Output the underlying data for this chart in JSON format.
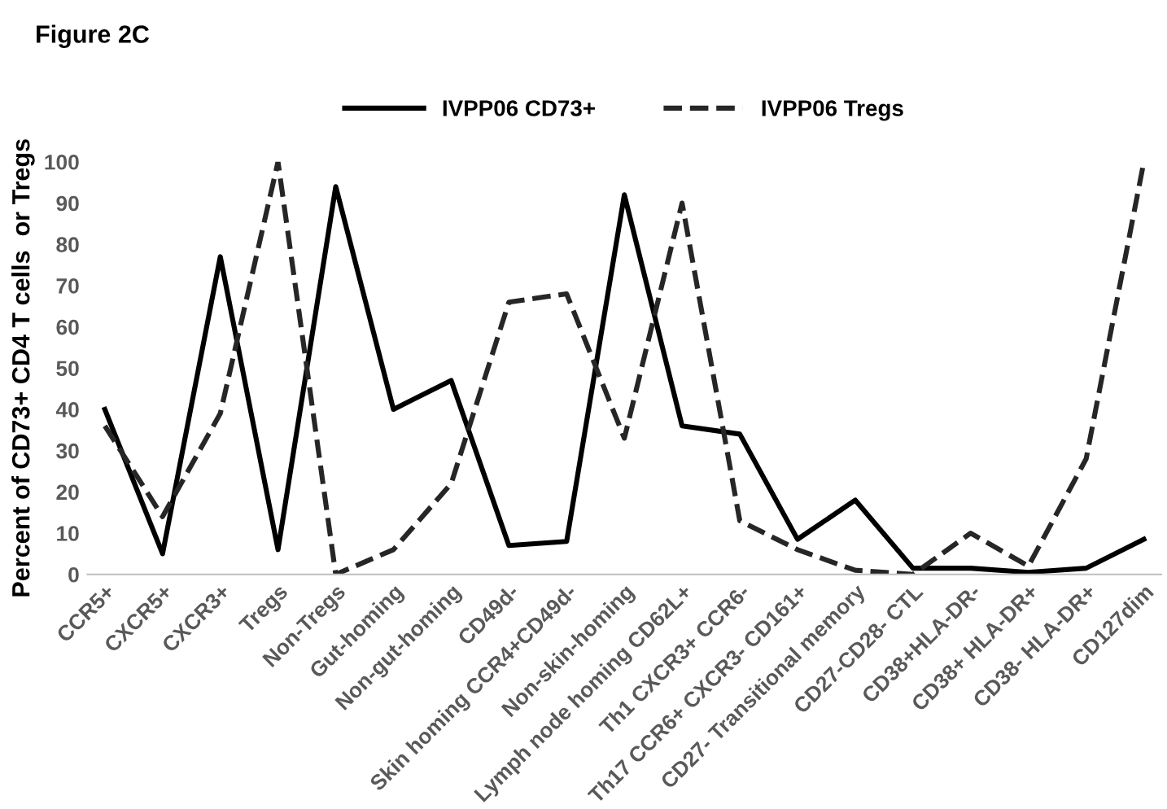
{
  "chart_data": {
    "type": "line",
    "title": "Figure 2C",
    "ylabel": "Percent of CD73+ CD4 T cells  or Tregs",
    "categories": [
      "CCR5+",
      "CXCR5+",
      "CXCR3+",
      "Tregs",
      "Non-Tregs",
      "Gut-homing",
      "Non-gut-homing",
      "CD49d-",
      "Skin homing CCR4+CD49d-",
      "Non-skin-homing",
      "Lymph node homing CD62L+",
      "Th1 CXCR3+ CCR6-",
      "Th17 CCR6+ CXCR3- CD161+",
      "CD27- Transitional memory",
      "CD27-CD28- CTL",
      "CD38+HLA-DR-",
      "CD38+ HLA-DR+",
      "CD38- HLA-DR+",
      "CD127dim"
    ],
    "series": [
      {
        "name": "IVPP06 CD73+",
        "color": "#000000",
        "line_style": "solid",
        "values": [
          40,
          5,
          77,
          6,
          94,
          40,
          47,
          7,
          8,
          92,
          36,
          34,
          8.5,
          18,
          1.5,
          1.5,
          0.5,
          1.5,
          8.5
        ]
      },
      {
        "name": "IVPP06 Tregs",
        "color": "#262626",
        "line_style": "dashed",
        "values": [
          36,
          14,
          39,
          100,
          0,
          6,
          22,
          66,
          68,
          33,
          90,
          13,
          6,
          1,
          0,
          10,
          2,
          28,
          100
        ]
      }
    ],
    "ylim": [
      0,
      100
    ],
    "yticks": [
      0,
      10,
      20,
      30,
      40,
      50,
      60,
      70,
      80,
      90,
      100
    ],
    "legend": "top",
    "grid": false,
    "marker": "none"
  }
}
